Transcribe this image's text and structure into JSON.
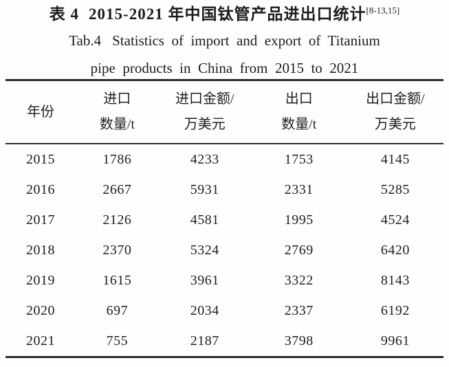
{
  "caption": {
    "zh_prefix": "表 4",
    "zh_main": "2015-2021 年中国钛管产品进出口统计",
    "zh_citation": "[8-13,15]",
    "en_prefix": "Tab.4",
    "en_line1_rest": "Statistics of import and export of Titanium",
    "en_line2": "pipe products in China from 2015 to 2021"
  },
  "table": {
    "headers": [
      {
        "line1": "年份",
        "line2": ""
      },
      {
        "line1": "进口",
        "line2": "数量/t"
      },
      {
        "line1": "进口金额/",
        "line2": "万美元"
      },
      {
        "line1": "出口",
        "line2": "数量/t"
      },
      {
        "line1": "出口金额/",
        "line2": "万美元"
      }
    ],
    "rows": [
      [
        "2015",
        "1786",
        "4233",
        "1753",
        "4145"
      ],
      [
        "2016",
        "2667",
        "5931",
        "2331",
        "5285"
      ],
      [
        "2017",
        "2126",
        "4581",
        "1995",
        "4524"
      ],
      [
        "2018",
        "2370",
        "5324",
        "2769",
        "6420"
      ],
      [
        "2019",
        "1615",
        "3961",
        "3322",
        "8143"
      ],
      [
        "2020",
        "697",
        "2034",
        "2337",
        "6192"
      ],
      [
        "2021",
        "755",
        "2187",
        "3798",
        "9961"
      ]
    ]
  },
  "chart_data": {
    "type": "table",
    "title": "表 4 2015-2021 年中国钛管产品进出口统计 / Tab.4 Statistics of import and export of Titanium pipe products in China from 2015 to 2021",
    "columns": [
      "年份",
      "进口数量/t",
      "进口金额/万美元",
      "出口数量/t",
      "出口金额/万美元"
    ],
    "years": [
      2015,
      2016,
      2017,
      2018,
      2019,
      2020,
      2021
    ],
    "series": [
      {
        "name": "进口数量/t",
        "values": [
          1786,
          2667,
          2126,
          2370,
          1615,
          697,
          755
        ]
      },
      {
        "name": "进口金额/万美元",
        "values": [
          4233,
          5931,
          4581,
          5324,
          3961,
          2034,
          2187
        ]
      },
      {
        "name": "出口数量/t",
        "values": [
          1753,
          2331,
          1995,
          2769,
          3322,
          2337,
          3798
        ]
      },
      {
        "name": "出口金额/万美元",
        "values": [
          4145,
          5285,
          4524,
          6420,
          8143,
          6192,
          9961
        ]
      }
    ],
    "colors": {
      "text": "#1c1c1c",
      "rule": "#2b2b2b",
      "background": "#fefefe"
    }
  }
}
